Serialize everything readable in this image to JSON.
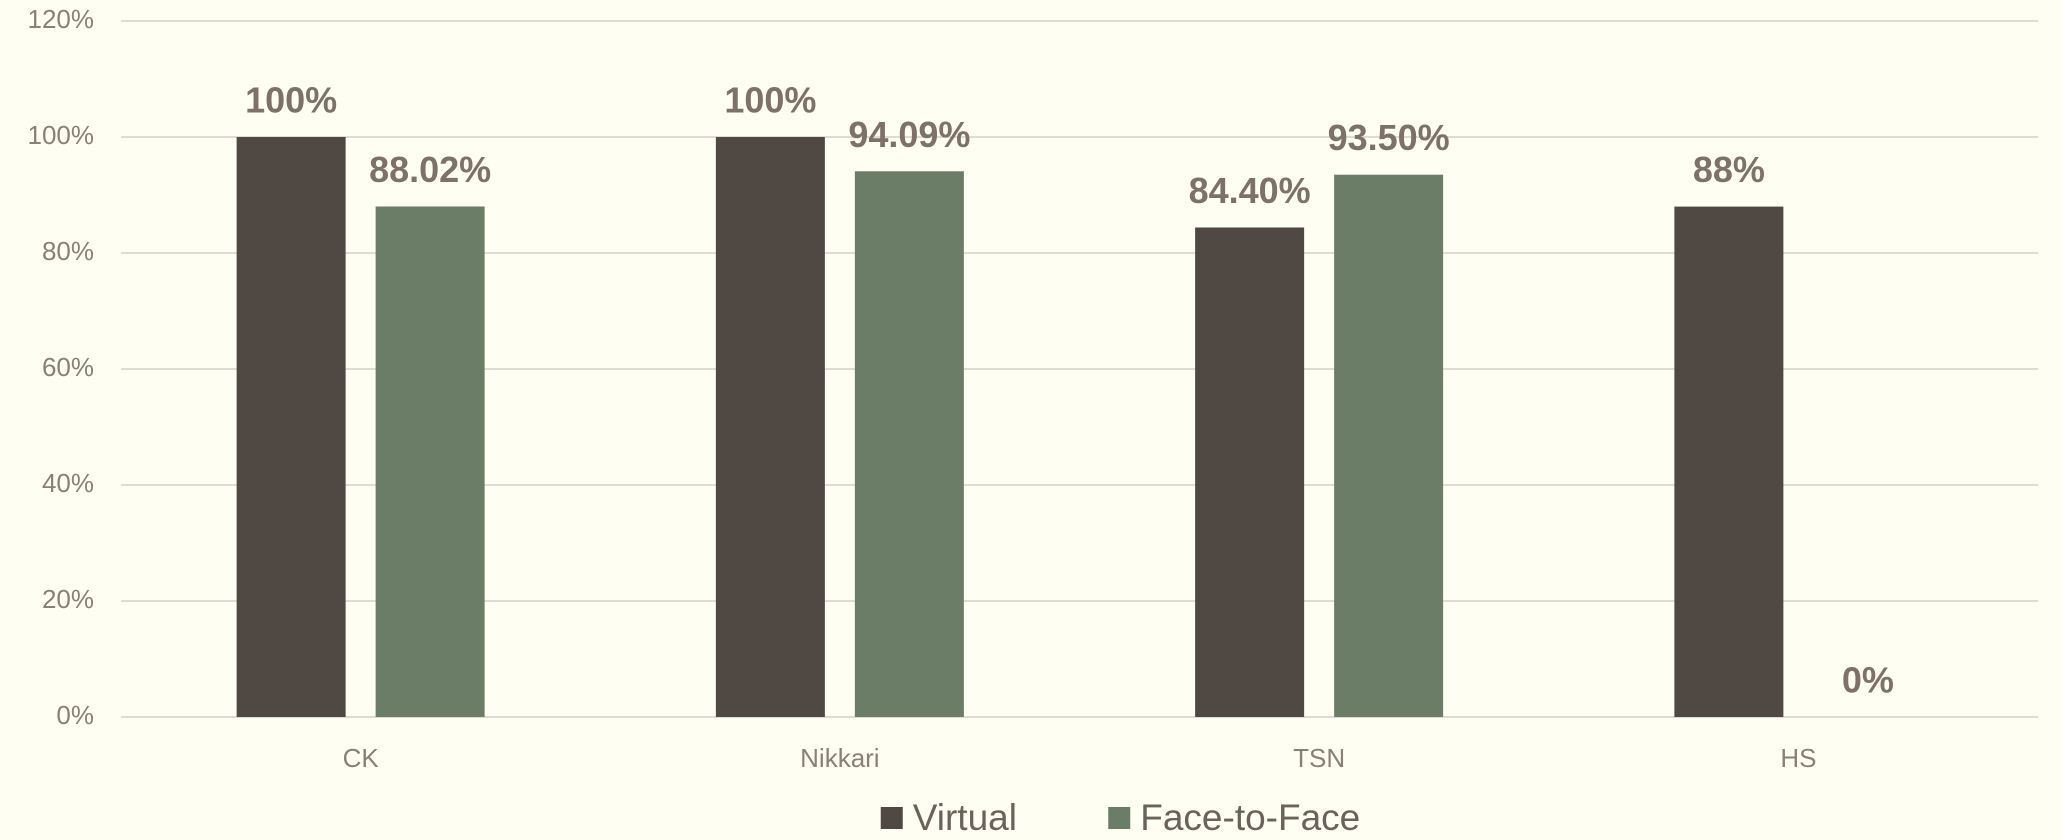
{
  "chart_data": {
    "type": "bar",
    "categories": [
      "CK",
      "Nikkari",
      "TSN",
      "HS"
    ],
    "series": [
      {
        "name": "Virtual",
        "color": "#504843",
        "values": [
          100,
          100,
          84.4,
          88
        ],
        "value_labels": [
          "100%",
          "100%",
          "84.40%",
          "88%"
        ]
      },
      {
        "name": "Face-to-Face",
        "color": "#6b7d67",
        "values": [
          88.02,
          94.09,
          93.5,
          0
        ],
        "value_labels": [
          "88.02%",
          "94.09%",
          "93.50%",
          "0%"
        ]
      }
    ],
    "ylim": [
      0,
      120
    ],
    "yticks": [
      {
        "value": 0,
        "label": "0%"
      },
      {
        "value": 20,
        "label": "20%"
      },
      {
        "value": 40,
        "label": "40%"
      },
      {
        "value": 60,
        "label": "60%"
      },
      {
        "value": 80,
        "label": "80%"
      },
      {
        "value": 100,
        "label": "100%"
      },
      {
        "value": 120,
        "label": "120%"
      }
    ],
    "grid": true,
    "legend": "bottom"
  }
}
